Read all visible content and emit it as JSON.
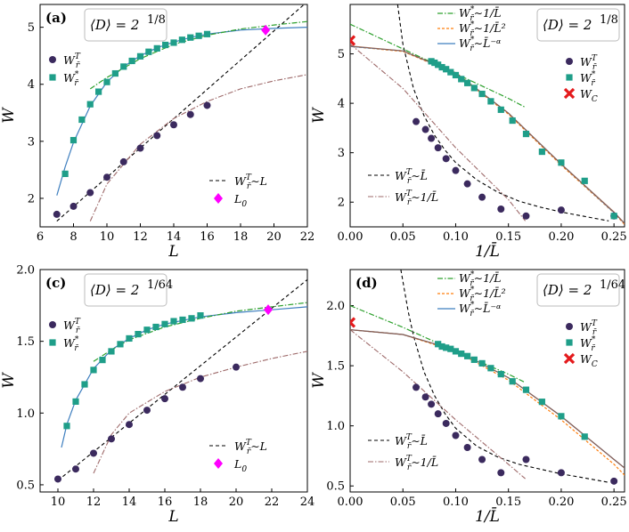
{
  "colors": {
    "circle": "#3b2a5e",
    "square": "#1f9e89",
    "fit_blue": "#3f7fbf",
    "fit_orange": "#ff7f0e",
    "fit_green": "#2ca02c",
    "fit_brown": "#a0522d",
    "crossing": "#ff00ff",
    "wc": "#e41a1c",
    "black_dash": "#000000",
    "gray_dashdot": "#9e6a6a"
  },
  "chart_data": [
    {
      "panel": "a",
      "type": "scatter",
      "label": "(a)",
      "box_text": "⟨D⟩ = 2^{1/8}",
      "box_main": "⟨D⟩ = 2",
      "box_frac": "1/8",
      "xlabel": "L",
      "ylabel": "W",
      "xlim": [
        6,
        22
      ],
      "ylim": [
        1.5,
        5.4
      ],
      "xticks": [
        6,
        8,
        10,
        12,
        14,
        16,
        18,
        20,
        22
      ],
      "yticks": [
        2,
        3,
        4,
        5
      ],
      "series": [
        {
          "name": "W_r̄^T",
          "marker": "circle",
          "x": [
            7,
            8,
            9,
            10,
            11,
            12,
            13,
            14,
            15,
            16
          ],
          "y": [
            1.72,
            1.86,
            2.1,
            2.37,
            2.64,
            2.88,
            3.1,
            3.29,
            3.47,
            3.63
          ]
        },
        {
          "name": "W_r̄^*",
          "marker": "square",
          "x": [
            7.5,
            8,
            8.5,
            9,
            9.5,
            10,
            10.5,
            11,
            11.5,
            12,
            12.5,
            13,
            13.5,
            14,
            14.5,
            15,
            15.5,
            16
          ],
          "y": [
            2.43,
            3.02,
            3.38,
            3.65,
            3.87,
            4.04,
            4.19,
            4.31,
            4.41,
            4.49,
            4.57,
            4.63,
            4.69,
            4.73,
            4.78,
            4.82,
            4.85,
            4.88
          ]
        }
      ],
      "fits": [
        {
          "name": "W_r̄^T ~ L",
          "style": "black_dash",
          "x": [
            7,
            22
          ],
          "y": [
            1.6,
            5.45
          ]
        },
        {
          "name": "W_r̄^T ~ 1/L",
          "style": "gray_dashdot",
          "x": [
            9,
            10,
            12,
            14,
            16,
            18,
            20,
            22
          ],
          "y": [
            1.6,
            2.25,
            2.95,
            3.4,
            3.7,
            3.92,
            4.06,
            4.17
          ]
        },
        {
          "name": "blue",
          "style": "fit_blue",
          "x": [
            7,
            7.5,
            8,
            9,
            10,
            11,
            12,
            13,
            14,
            15,
            16,
            18,
            20,
            22
          ],
          "y": [
            2.05,
            2.55,
            2.98,
            3.62,
            4.04,
            4.31,
            4.5,
            4.64,
            4.74,
            4.82,
            4.88,
            4.95,
            4.98,
            5.0
          ]
        },
        {
          "name": "green",
          "style": "fit_green",
          "x": [
            9,
            10,
            12,
            14,
            16,
            18,
            20,
            22
          ],
          "y": [
            3.92,
            4.12,
            4.45,
            4.7,
            4.86,
            4.97,
            5.04,
            5.1
          ]
        }
      ],
      "crossing": {
        "name": "L_0",
        "x": 19.5,
        "y": 4.95
      },
      "legend": [
        {
          "sym": "circle",
          "base": "W",
          "sub": "r̄",
          "sup": "T"
        },
        {
          "sym": "square",
          "base": "W",
          "sub": "r̄",
          "sup": "*"
        }
      ],
      "legend2": [
        {
          "sym": "dash",
          "text": "W",
          "sub": "r̄",
          "sup": "T",
          "after": "∼L"
        },
        {
          "sym": "diamond",
          "text": "L",
          "sub": "0",
          "sup": "",
          "after": ""
        }
      ]
    },
    {
      "panel": "b",
      "type": "scatter",
      "label": "",
      "box_main": "⟨D⟩ = 2",
      "box_frac": "1/8",
      "xlabel": "1/L̄",
      "ylabel": "W",
      "xlim": [
        0,
        0.26
      ],
      "ylim": [
        1.5,
        6.0
      ],
      "xticks": [
        0.0,
        0.05,
        0.1,
        0.15,
        0.2,
        0.25
      ],
      "yticks": [
        2,
        3,
        4,
        5
      ],
      "series": [
        {
          "name": "W_r̄^T",
          "marker": "circle",
          "x": [
            0.0625,
            0.0714,
            0.0769,
            0.0833,
            0.0909,
            0.1,
            0.1111,
            0.125,
            0.1429,
            0.1667,
            0.2,
            0.25
          ],
          "y": [
            3.63,
            3.47,
            3.29,
            3.1,
            2.88,
            2.64,
            2.37,
            2.1,
            1.86,
            1.72,
            1.84,
            1.72
          ]
        },
        {
          "name": "W_r̄^*",
          "marker": "square",
          "x": [
            0.0769,
            0.08,
            0.0833,
            0.087,
            0.0909,
            0.0952,
            0.1,
            0.1053,
            0.1111,
            0.1176,
            0.125,
            0.1333,
            0.1429,
            0.1538,
            0.1667,
            0.1818,
            0.2,
            0.2222,
            0.25
          ],
          "y": [
            4.85,
            4.82,
            4.78,
            4.73,
            4.69,
            4.63,
            4.57,
            4.49,
            4.41,
            4.31,
            4.19,
            4.04,
            3.87,
            3.65,
            3.38,
            3.02,
            2.8,
            2.43,
            1.72
          ]
        },
        {
          "name": "W_C",
          "marker": "cross",
          "x": [
            0.0
          ],
          "y": [
            5.27
          ]
        }
      ],
      "fits": [
        {
          "name": "W_r̄^T ~ L̄",
          "style": "black_dash",
          "x": [
            0.045,
            0.05,
            0.06,
            0.07,
            0.08,
            0.09,
            0.1,
            0.12,
            0.14,
            0.16,
            0.18,
            0.2,
            0.22,
            0.245
          ],
          "y": [
            6.0,
            5.2,
            4.3,
            3.75,
            3.35,
            3.05,
            2.8,
            2.45,
            2.2,
            2.02,
            1.9,
            1.8,
            1.72,
            1.62
          ]
        },
        {
          "name": "W_r̄^T ~ 1/L̄",
          "style": "gray_dashdot",
          "x": [
            0,
            0.05,
            0.1,
            0.15,
            0.166
          ],
          "y": [
            5.2,
            4.3,
            3.1,
            2.05,
            1.62
          ]
        },
        {
          "name": "W_r̄^* ~ 1/L̄",
          "style": "fit_green",
          "x": [
            0,
            0.05,
            0.1,
            0.15,
            0.166
          ],
          "y": [
            5.6,
            5.1,
            4.6,
            4.1,
            3.92
          ]
        },
        {
          "name": "W_r̄^* ~ 1/L̄^2",
          "style": "fit_orange",
          "x": [
            0,
            0.05,
            0.1,
            0.15,
            0.2,
            0.25,
            0.26
          ],
          "y": [
            5.15,
            5.05,
            4.6,
            3.78,
            2.75,
            1.78,
            1.55
          ]
        },
        {
          "name": "W_r̄^* ~ L̄^{-α}",
          "style": "fit_blue",
          "x": [
            0,
            0.05,
            0.1,
            0.15,
            0.2,
            0.25,
            0.26
          ],
          "y": [
            5.15,
            5.06,
            4.61,
            3.8,
            2.77,
            1.79,
            1.57
          ]
        },
        {
          "name": "brown",
          "style": "fit_brown",
          "x": [
            0,
            0.05,
            0.1,
            0.15,
            0.2,
            0.25,
            0.26
          ],
          "y": [
            5.16,
            5.06,
            4.62,
            3.8,
            2.77,
            1.8,
            1.57
          ]
        }
      ],
      "legend_top": [
        {
          "style": "fit_green",
          "text": "W",
          "sub": "r̄",
          "sup": "*",
          "after": "∼1/L̄"
        },
        {
          "style": "fit_orange",
          "text": "W",
          "sub": "r̄",
          "sup": "*",
          "after": "∼1/L̄²"
        },
        {
          "style": "fit_blue",
          "text": "W",
          "sub": "r̄",
          "sup": "*",
          "after": "∼L̄⁻ᵅ"
        }
      ],
      "legend_right": [
        {
          "sym": "circle",
          "base": "W",
          "sub": "r̄",
          "sup": "T"
        },
        {
          "sym": "square",
          "base": "W",
          "sub": "r̄",
          "sup": "*"
        },
        {
          "sym": "cross",
          "base": "W",
          "sub": "C",
          "sup": ""
        }
      ],
      "legend_bottom": [
        {
          "style": "black_dash",
          "text": "W",
          "sub": "r̄",
          "sup": "T",
          "after": "∼L̄"
        },
        {
          "style": "gray_dashdot",
          "text": "W",
          "sub": "r̄",
          "sup": "T",
          "after": "∼1/L̄"
        }
      ]
    },
    {
      "panel": "c",
      "type": "scatter",
      "label": "(c)",
      "box_main": "⟨D⟩ = 2",
      "box_frac": "1/64",
      "xlabel": "L",
      "ylabel": "W",
      "xlim": [
        9,
        24
      ],
      "ylim": [
        0.45,
        2.0
      ],
      "xticks": [
        10,
        12,
        14,
        16,
        18,
        20,
        22,
        24
      ],
      "yticks": [
        0.5,
        1.0,
        1.5,
        2.0
      ],
      "yticklabels": [
        "0.5",
        "1.0",
        "1.5",
        "2.0"
      ],
      "series": [
        {
          "name": "W_r̄^T",
          "marker": "circle",
          "x": [
            10,
            11,
            12,
            13,
            14,
            15,
            16,
            17,
            18,
            20
          ],
          "y": [
            0.54,
            0.61,
            0.72,
            0.82,
            0.92,
            1.02,
            1.1,
            1.18,
            1.24,
            1.32
          ]
        },
        {
          "name": "W_r̄^*",
          "marker": "square",
          "x": [
            10.5,
            11,
            11.5,
            12,
            12.5,
            13,
            13.5,
            14,
            14.5,
            15,
            15.5,
            16,
            16.5,
            17,
            17.5,
            18
          ],
          "y": [
            0.91,
            1.08,
            1.2,
            1.3,
            1.37,
            1.43,
            1.48,
            1.52,
            1.55,
            1.58,
            1.6,
            1.62,
            1.64,
            1.65,
            1.66,
            1.68
          ]
        }
      ],
      "fits": [
        {
          "name": "W_r̄^T ~ L",
          "style": "black_dash",
          "x": [
            10,
            24
          ],
          "y": [
            0.53,
            1.93
          ]
        },
        {
          "name": "W_r̄^T ~ 1/L",
          "style": "gray_dashdot",
          "x": [
            12,
            13,
            14,
            16,
            18,
            20,
            22,
            24
          ],
          "y": [
            0.58,
            0.85,
            1.0,
            1.15,
            1.25,
            1.32,
            1.38,
            1.43
          ]
        },
        {
          "name": "blue",
          "style": "fit_blue",
          "x": [
            10.2,
            10.5,
            11,
            12,
            13,
            14,
            15,
            16,
            18,
            20,
            22,
            24
          ],
          "y": [
            0.76,
            0.92,
            1.09,
            1.31,
            1.44,
            1.52,
            1.58,
            1.62,
            1.67,
            1.7,
            1.72,
            1.74
          ]
        },
        {
          "name": "green",
          "style": "fit_green",
          "x": [
            12,
            13,
            14,
            16,
            18,
            20,
            22,
            24
          ],
          "y": [
            1.36,
            1.44,
            1.51,
            1.6,
            1.66,
            1.71,
            1.74,
            1.77
          ]
        }
      ],
      "crossing": {
        "name": "L_0",
        "x": 21.8,
        "y": 1.72
      },
      "legend": [
        {
          "sym": "circle",
          "base": "W",
          "sub": "r̄",
          "sup": "T"
        },
        {
          "sym": "square",
          "base": "W",
          "sub": "r̄",
          "sup": "*"
        }
      ],
      "legend2": [
        {
          "sym": "dash",
          "text": "W",
          "sub": "r̄",
          "sup": "T",
          "after": "∼L"
        },
        {
          "sym": "diamond",
          "text": "L",
          "sub": "0",
          "sup": "",
          "after": ""
        }
      ]
    },
    {
      "panel": "d",
      "type": "scatter",
      "label": "(d)",
      "box_main": "⟨D⟩ = 2",
      "box_frac": "1/64",
      "xlabel": "1/L̄",
      "ylabel": "W",
      "xlim": [
        0,
        0.26
      ],
      "ylim": [
        0.45,
        2.3
      ],
      "xticks": [
        0.0,
        0.05,
        0.1,
        0.15,
        0.2,
        0.25
      ],
      "yticks": [
        0.5,
        1.0,
        1.5,
        2.0
      ],
      "yticklabels": [
        "0.5",
        "1.0",
        "1.5",
        "2.0"
      ],
      "series": [
        {
          "name": "W_r̄^T",
          "marker": "circle",
          "x": [
            0.0625,
            0.0714,
            0.0769,
            0.0833,
            0.0909,
            0.1,
            0.1111,
            0.125,
            0.1429,
            0.1667,
            0.2,
            0.25
          ],
          "y": [
            1.32,
            1.24,
            1.18,
            1.1,
            1.02,
            0.92,
            0.82,
            0.72,
            0.61,
            0.72,
            0.61,
            0.54
          ]
        },
        {
          "name": "W_r̄^*",
          "marker": "square",
          "x": [
            0.0833,
            0.087,
            0.0909,
            0.0952,
            0.1,
            0.1053,
            0.1111,
            0.1176,
            0.125,
            0.1333,
            0.1429,
            0.1538,
            0.1667,
            0.1818,
            0.2,
            0.2222
          ],
          "y": [
            1.68,
            1.66,
            1.65,
            1.64,
            1.62,
            1.6,
            1.58,
            1.55,
            1.52,
            1.48,
            1.43,
            1.37,
            1.3,
            1.2,
            1.08,
            0.91
          ]
        },
        {
          "name": "W_C",
          "marker": "cross",
          "x": [
            0.0
          ],
          "y": [
            1.86
          ]
        }
      ],
      "fits": [
        {
          "name": "W_r̄^T ~ L̄",
          "style": "black_dash",
          "x": [
            0.048,
            0.055,
            0.06,
            0.07,
            0.08,
            0.09,
            0.1,
            0.12,
            0.14,
            0.16,
            0.18,
            0.2,
            0.22,
            0.245
          ],
          "y": [
            2.3,
            1.95,
            1.75,
            1.45,
            1.25,
            1.1,
            0.98,
            0.83,
            0.74,
            0.68,
            0.64,
            0.6,
            0.57,
            0.53
          ]
        },
        {
          "name": "W_r̄^T ~ 1/L̄",
          "style": "gray_dashdot",
          "x": [
            0,
            0.05,
            0.1,
            0.15,
            0.166
          ],
          "y": [
            1.8,
            1.45,
            1.05,
            0.68,
            0.56
          ]
        },
        {
          "name": "W_r̄^* ~ 1/L̄",
          "style": "fit_green",
          "x": [
            0,
            0.05,
            0.1,
            0.15,
            0.166
          ],
          "y": [
            2.0,
            1.82,
            1.62,
            1.43,
            1.36
          ]
        },
        {
          "name": "W_r̄^* ~ 1/L̄^2",
          "style": "fit_orange",
          "x": [
            0,
            0.05,
            0.1,
            0.15,
            0.2,
            0.25,
            0.26
          ],
          "y": [
            1.8,
            1.76,
            1.62,
            1.38,
            1.05,
            0.68,
            0.59
          ]
        },
        {
          "name": "W_r̄^* ~ L̄^{-α}",
          "style": "fit_blue",
          "x": [
            0,
            0.05,
            0.1,
            0.15,
            0.2,
            0.25,
            0.26
          ],
          "y": [
            1.8,
            1.76,
            1.63,
            1.4,
            1.08,
            0.72,
            0.65
          ]
        },
        {
          "name": "brown",
          "style": "fit_brown",
          "x": [
            0,
            0.05,
            0.1,
            0.15,
            0.2,
            0.25,
            0.26
          ],
          "y": [
            1.8,
            1.76,
            1.63,
            1.4,
            1.08,
            0.72,
            0.65
          ]
        }
      ],
      "legend_top": [
        {
          "style": "fit_green",
          "text": "W",
          "sub": "r̄",
          "sup": "*",
          "after": "∼1/L̄"
        },
        {
          "style": "fit_orange",
          "text": "W",
          "sub": "r̄",
          "sup": "*",
          "after": "∼1/L̄²"
        },
        {
          "style": "fit_blue",
          "text": "W",
          "sub": "r̄",
          "sup": "*",
          "after": "∼L̄⁻ᵅ"
        }
      ],
      "legend_right": [
        {
          "sym": "circle",
          "base": "W",
          "sub": "r̄",
          "sup": "T"
        },
        {
          "sym": "square",
          "base": "W",
          "sub": "r̄",
          "sup": "*"
        },
        {
          "sym": "cross",
          "base": "W",
          "sub": "C",
          "sup": ""
        }
      ],
      "legend_bottom": [
        {
          "style": "black_dash",
          "text": "W",
          "sub": "r̄",
          "sup": "T",
          "after": "∼L̄"
        },
        {
          "style": "gray_dashdot",
          "text": "W",
          "sub": "r̄",
          "sup": "T",
          "after": "∼1/L̄"
        }
      ]
    }
  ]
}
